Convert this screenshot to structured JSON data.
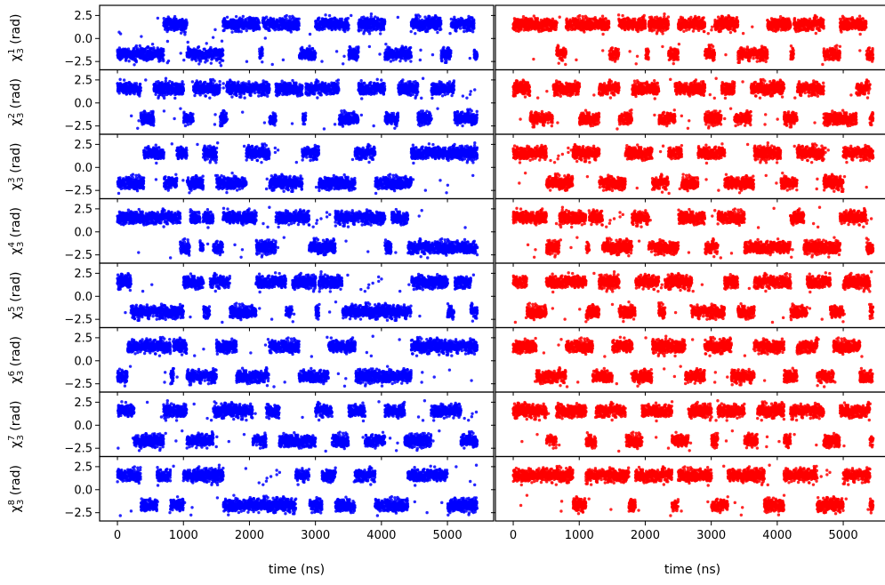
{
  "chart_data": {
    "type": "scatter",
    "layout": "8 rows x 2 columns of panels with shared axes",
    "xlabel": "time (ns)",
    "xlim": [
      -270,
      5700
    ],
    "xticks": [
      0,
      1000,
      2000,
      3000,
      4000,
      5000
    ],
    "xtick_labels": [
      "0",
      "1000",
      "2000",
      "3000",
      "4000",
      "5000"
    ],
    "ylim": [
      -3.4,
      3.6
    ],
    "yticks": [
      2.5,
      0.0,
      -2.5
    ],
    "ytick_labels": [
      "2.5",
      "0.0",
      "−2.5"
    ],
    "row_ylabels": [
      {
        "symbol": "χ",
        "sub": "3",
        "sup": "1",
        "unit": " (rad)"
      },
      {
        "symbol": "χ",
        "sub": "3",
        "sup": "2",
        "unit": " (rad)"
      },
      {
        "symbol": "χ",
        "sub": "3",
        "sup": "3",
        "unit": " (rad)"
      },
      {
        "symbol": "χ",
        "sub": "3",
        "sup": "4",
        "unit": " (rad)"
      },
      {
        "symbol": "χ",
        "sub": "3",
        "sup": "5",
        "unit": " (rad)"
      },
      {
        "symbol": "χ",
        "sub": "3",
        "sup": "6",
        "unit": " (rad)"
      },
      {
        "symbol": "χ",
        "sub": "3",
        "sup": "7",
        "unit": " (rad)"
      },
      {
        "symbol": "χ",
        "sub": "3",
        "sup": "8",
        "unit": " (rad)"
      }
    ],
    "series_colors": [
      "#0000ff",
      "#ff0000"
    ],
    "state_centers": [
      1.55,
      -1.7
    ],
    "panels": [
      {
        "row": 1,
        "col": 1,
        "color": "#0000ff",
        "up_segments": [
          [
            700,
            1050
          ],
          [
            1600,
            2150
          ],
          [
            2200,
            2750
          ],
          [
            3000,
            3500
          ],
          [
            3650,
            4050
          ],
          [
            4450,
            4900
          ],
          [
            5050,
            5400
          ]
        ]
      },
      {
        "row": 1,
        "col": 2,
        "color": "#ff0000",
        "up_segments": [
          [
            0,
            650
          ],
          [
            800,
            1450
          ],
          [
            1600,
            2000
          ],
          [
            2050,
            2350
          ],
          [
            2500,
            2900
          ],
          [
            3050,
            3400
          ],
          [
            3850,
            4200
          ],
          [
            4250,
            4700
          ],
          [
            4950,
            5350
          ]
        ]
      },
      {
        "row": 2,
        "col": 1,
        "color": "#0000ff",
        "up_segments": [
          [
            0,
            350
          ],
          [
            550,
            1000
          ],
          [
            1150,
            1550
          ],
          [
            1650,
            2300
          ],
          [
            2400,
            2800
          ],
          [
            2850,
            3350
          ],
          [
            3650,
            4050
          ],
          [
            4250,
            4550
          ],
          [
            4750,
            5100
          ]
        ]
      },
      {
        "row": 2,
        "col": 2,
        "color": "#ff0000",
        "up_segments": [
          [
            0,
            250
          ],
          [
            600,
            1000
          ],
          [
            1300,
            1600
          ],
          [
            1800,
            2200
          ],
          [
            2450,
            2900
          ],
          [
            3150,
            3350
          ],
          [
            3600,
            4100
          ],
          [
            4300,
            4700
          ],
          [
            5200,
            5400
          ]
        ]
      },
      {
        "row": 3,
        "col": 1,
        "color": "#0000ff",
        "up_segments": [
          [
            400,
            700
          ],
          [
            900,
            1050
          ],
          [
            1300,
            1500
          ],
          [
            1950,
            2300
          ],
          [
            2800,
            3050
          ],
          [
            3600,
            3900
          ],
          [
            4450,
            5450
          ]
        ]
      },
      {
        "row": 3,
        "col": 2,
        "color": "#ff0000",
        "up_segments": [
          [
            0,
            500
          ],
          [
            900,
            1300
          ],
          [
            1700,
            2100
          ],
          [
            2350,
            2550
          ],
          [
            2800,
            3200
          ],
          [
            3650,
            4050
          ],
          [
            4300,
            4700
          ],
          [
            5000,
            5450
          ]
        ]
      },
      {
        "row": 4,
        "col": 1,
        "color": "#0000ff",
        "up_segments": [
          [
            0,
            950
          ],
          [
            1100,
            1250
          ],
          [
            1300,
            1450
          ],
          [
            1600,
            2100
          ],
          [
            2400,
            2900
          ],
          [
            3300,
            4050
          ],
          [
            4150,
            4400
          ]
        ]
      },
      {
        "row": 4,
        "col": 2,
        "color": "#ff0000",
        "up_segments": [
          [
            0,
            500
          ],
          [
            700,
            1100
          ],
          [
            1150,
            1350
          ],
          [
            1800,
            2050
          ],
          [
            2500,
            2900
          ],
          [
            3100,
            3500
          ],
          [
            4200,
            4400
          ],
          [
            4950,
            5350
          ]
        ]
      },
      {
        "row": 5,
        "col": 1,
        "color": "#0000ff",
        "up_segments": [
          [
            0,
            200
          ],
          [
            1000,
            1300
          ],
          [
            1400,
            1700
          ],
          [
            2100,
            2550
          ],
          [
            2650,
            3000
          ],
          [
            3050,
            3400
          ],
          [
            4450,
            5000
          ],
          [
            5100,
            5350
          ]
        ]
      },
      {
        "row": 5,
        "col": 2,
        "color": "#ff0000",
        "up_segments": [
          [
            0,
            200
          ],
          [
            500,
            1100
          ],
          [
            1300,
            1600
          ],
          [
            1850,
            2200
          ],
          [
            2300,
            2700
          ],
          [
            3200,
            3400
          ],
          [
            3650,
            4200
          ],
          [
            4450,
            4800
          ],
          [
            5000,
            5400
          ]
        ]
      },
      {
        "row": 6,
        "col": 1,
        "color": "#0000ff",
        "up_segments": [
          [
            150,
            800
          ],
          [
            850,
            1050
          ],
          [
            1500,
            1800
          ],
          [
            2300,
            2750
          ],
          [
            3200,
            3600
          ],
          [
            4450,
            5450
          ]
        ]
      },
      {
        "row": 6,
        "col": 2,
        "color": "#ff0000",
        "up_segments": [
          [
            0,
            350
          ],
          [
            800,
            1200
          ],
          [
            1500,
            1800
          ],
          [
            2100,
            2600
          ],
          [
            2900,
            3300
          ],
          [
            3650,
            4100
          ],
          [
            4300,
            4600
          ],
          [
            4850,
            5250
          ]
        ]
      },
      {
        "row": 7,
        "col": 1,
        "color": "#0000ff",
        "up_segments": [
          [
            0,
            250
          ],
          [
            700,
            1050
          ],
          [
            1450,
            2050
          ],
          [
            2250,
            2450
          ],
          [
            3000,
            3250
          ],
          [
            3500,
            3750
          ],
          [
            4050,
            4350
          ],
          [
            4750,
            5200
          ]
        ]
      },
      {
        "row": 7,
        "col": 2,
        "color": "#ff0000",
        "up_segments": [
          [
            0,
            500
          ],
          [
            650,
            1100
          ],
          [
            1250,
            1700
          ],
          [
            1950,
            2400
          ],
          [
            2650,
            3000
          ],
          [
            3100,
            3500
          ],
          [
            3700,
            4100
          ],
          [
            4200,
            4700
          ],
          [
            4950,
            5400
          ]
        ]
      },
      {
        "row": 8,
        "col": 1,
        "color": "#0000ff",
        "up_segments": [
          [
            0,
            350
          ],
          [
            600,
            800
          ],
          [
            1000,
            1600
          ],
          [
            2700,
            2900
          ],
          [
            3100,
            3300
          ],
          [
            3600,
            3900
          ],
          [
            4400,
            5000
          ]
        ]
      },
      {
        "row": 8,
        "col": 2,
        "color": "#ff0000",
        "up_segments": [
          [
            0,
            900
          ],
          [
            1100,
            1750
          ],
          [
            1850,
            2400
          ],
          [
            2500,
            3000
          ],
          [
            3250,
            3800
          ],
          [
            4100,
            4600
          ],
          [
            5000,
            5400
          ]
        ]
      }
    ]
  }
}
